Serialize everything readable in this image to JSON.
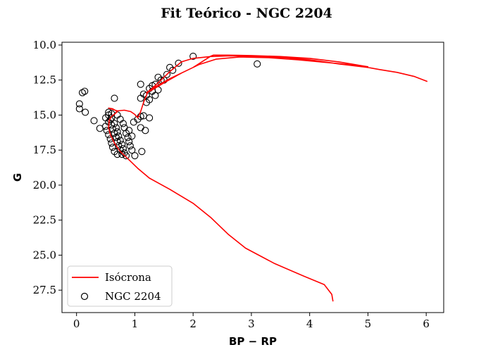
{
  "chart_data": {
    "type": "scatter",
    "title": "Fit Teórico - NGC 2204",
    "xlabel": "BP − RP",
    "ylabel": "G",
    "xlim": [
      -0.25,
      6.3
    ],
    "ylim": [
      29.1,
      9.8
    ],
    "y_inverted": true,
    "xticks": [
      "0",
      "1",
      "2",
      "3",
      "4",
      "5",
      "6"
    ],
    "yticks": [
      "10.0",
      "12.5",
      "15.0",
      "17.5",
      "20.0",
      "22.5",
      "25.0",
      "27.5"
    ],
    "legend_position": "lower-left",
    "series": [
      {
        "name": "Isócrona",
        "kind": "line",
        "color": "#ff0000",
        "points": [
          [
            4.4,
            28.3
          ],
          [
            4.38,
            27.8
          ],
          [
            4.25,
            27.1
          ],
          [
            3.9,
            26.5
          ],
          [
            3.4,
            25.6
          ],
          [
            2.9,
            24.5
          ],
          [
            2.6,
            23.5
          ],
          [
            2.3,
            22.3
          ],
          [
            2.0,
            21.3
          ],
          [
            1.6,
            20.3
          ],
          [
            1.25,
            19.5
          ],
          [
            1.05,
            18.8
          ],
          [
            0.9,
            18.2
          ],
          [
            0.75,
            17.6
          ],
          [
            0.65,
            17.0
          ],
          [
            0.58,
            16.4
          ],
          [
            0.55,
            15.9
          ],
          [
            0.56,
            15.4
          ],
          [
            0.6,
            15.1
          ],
          [
            0.66,
            14.9
          ],
          [
            0.7,
            14.75
          ],
          [
            0.62,
            14.55
          ],
          [
            0.55,
            14.5
          ],
          [
            0.7,
            14.7
          ],
          [
            0.82,
            14.65
          ],
          [
            0.93,
            14.75
          ],
          [
            1.0,
            14.95
          ],
          [
            1.05,
            15.2
          ],
          [
            1.1,
            14.75
          ],
          [
            1.15,
            14.1
          ],
          [
            1.22,
            13.4
          ],
          [
            1.32,
            13.0
          ],
          [
            1.45,
            12.5
          ],
          [
            1.6,
            11.9
          ],
          [
            1.8,
            11.2
          ],
          [
            2.0,
            10.95
          ],
          [
            2.3,
            10.82
          ],
          [
            2.6,
            10.78
          ],
          [
            2.9,
            10.78
          ],
          [
            3.2,
            10.82
          ],
          [
            3.6,
            10.9
          ],
          [
            4.0,
            11.05
          ],
          [
            4.5,
            11.35
          ],
          [
            5.0,
            11.6
          ],
          [
            5.0,
            11.55
          ],
          [
            4.5,
            11.2
          ],
          [
            4.0,
            10.95
          ],
          [
            3.5,
            10.82
          ],
          [
            3.0,
            10.75
          ],
          [
            2.6,
            10.72
          ],
          [
            2.35,
            10.72
          ],
          [
            2.3,
            10.8
          ],
          [
            2.0,
            11.6
          ],
          [
            1.6,
            12.4
          ],
          [
            1.3,
            13.1
          ],
          [
            1.2,
            13.4
          ],
          [
            1.3,
            13.2
          ],
          [
            1.5,
            12.7
          ],
          [
            1.8,
            12.0
          ],
          [
            2.1,
            11.4
          ],
          [
            2.4,
            11.0
          ],
          [
            2.8,
            10.85
          ],
          [
            3.3,
            10.9
          ],
          [
            3.8,
            11.05
          ],
          [
            4.3,
            11.25
          ],
          [
            4.8,
            11.45
          ],
          [
            5.2,
            11.75
          ],
          [
            5.5,
            11.95
          ],
          [
            5.8,
            12.25
          ],
          [
            6.02,
            12.6
          ]
        ]
      },
      {
        "name": "NGC 2204",
        "kind": "scatter",
        "color": "#000000",
        "points": [
          [
            0.05,
            14.2
          ],
          [
            0.05,
            14.55
          ],
          [
            0.1,
            13.4
          ],
          [
            0.14,
            13.3
          ],
          [
            0.15,
            14.8
          ],
          [
            0.3,
            15.4
          ],
          [
            0.4,
            15.95
          ],
          [
            0.65,
            13.8
          ],
          [
            0.55,
            14.8
          ],
          [
            0.6,
            14.9
          ],
          [
            0.5,
            15.2
          ],
          [
            0.55,
            15.5
          ],
          [
            0.5,
            15.8
          ],
          [
            0.52,
            16.1
          ],
          [
            0.55,
            16.4
          ],
          [
            0.58,
            16.7
          ],
          [
            0.6,
            17.0
          ],
          [
            0.62,
            17.3
          ],
          [
            0.65,
            17.6
          ],
          [
            0.7,
            17.8
          ],
          [
            0.6,
            15.2
          ],
          [
            0.65,
            15.6
          ],
          [
            0.68,
            15.9
          ],
          [
            0.7,
            16.2
          ],
          [
            0.72,
            16.5
          ],
          [
            0.75,
            16.8
          ],
          [
            0.78,
            17.1
          ],
          [
            0.8,
            17.4
          ],
          [
            0.82,
            17.7
          ],
          [
            0.85,
            17.9
          ],
          [
            0.7,
            15.0
          ],
          [
            0.75,
            15.3
          ],
          [
            0.8,
            15.6
          ],
          [
            0.82,
            15.9
          ],
          [
            0.85,
            16.3
          ],
          [
            0.88,
            16.6
          ],
          [
            0.9,
            16.9
          ],
          [
            0.92,
            17.2
          ],
          [
            0.95,
            17.5
          ],
          [
            1.0,
            17.9
          ],
          [
            0.55,
            15.0
          ],
          [
            0.58,
            15.35
          ],
          [
            0.6,
            15.7
          ],
          [
            0.62,
            16.0
          ],
          [
            0.65,
            16.3
          ],
          [
            0.68,
            16.6
          ],
          [
            0.7,
            16.9
          ],
          [
            0.72,
            17.2
          ],
          [
            0.75,
            17.5
          ],
          [
            0.78,
            17.8
          ],
          [
            0.9,
            16.1
          ],
          [
            0.95,
            16.5
          ],
          [
            0.98,
            15.5
          ],
          [
            1.05,
            15.3
          ],
          [
            1.1,
            15.1
          ],
          [
            1.15,
            15.05
          ],
          [
            1.1,
            15.9
          ],
          [
            1.18,
            16.1
          ],
          [
            1.25,
            15.2
          ],
          [
            1.12,
            17.6
          ],
          [
            1.1,
            13.8
          ],
          [
            1.15,
            13.5
          ],
          [
            1.2,
            13.6
          ],
          [
            1.25,
            13.9
          ],
          [
            1.2,
            14.1
          ],
          [
            1.3,
            13.3
          ],
          [
            1.35,
            13.6
          ],
          [
            1.4,
            13.2
          ],
          [
            1.45,
            12.5
          ],
          [
            1.4,
            12.3
          ],
          [
            1.5,
            12.5
          ],
          [
            1.55,
            12.1
          ],
          [
            1.6,
            11.6
          ],
          [
            1.65,
            11.8
          ],
          [
            1.75,
            11.3
          ],
          [
            1.35,
            12.8
          ],
          [
            1.3,
            12.9
          ],
          [
            1.25,
            13.1
          ],
          [
            1.1,
            12.8
          ],
          [
            2.0,
            10.8
          ],
          [
            3.1,
            11.35
          ]
        ]
      }
    ]
  }
}
